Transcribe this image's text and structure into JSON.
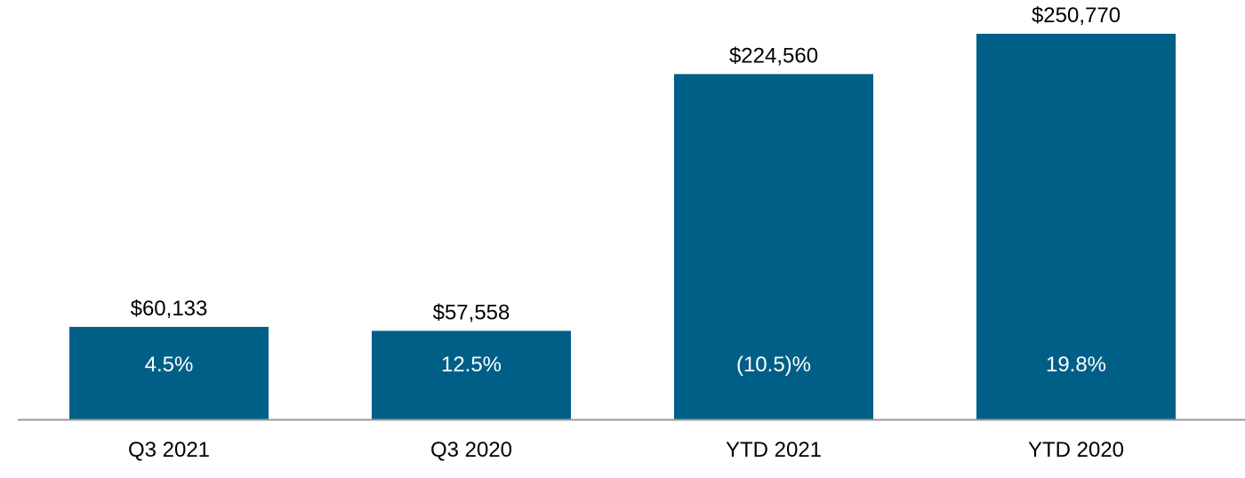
{
  "chart_data": {
    "type": "bar",
    "categories": [
      "Q3 2021",
      "Q3 2020",
      "YTD 2021",
      "YTD 2020"
    ],
    "values": [
      60133,
      57558,
      224560,
      250770
    ],
    "value_labels": [
      "$60,133",
      "$57,558",
      "$224,560",
      "$250,770"
    ],
    "bar_annotations": [
      "4.5%",
      "12.5%",
      "(10.5)%",
      "19.8%"
    ],
    "title": "",
    "xlabel": "",
    "ylabel": "",
    "ylim": [
      0,
      250770
    ],
    "grid": false,
    "legend": "none",
    "colors": {
      "bar": "#005f87",
      "axis": "#999999",
      "value_text": "#000000",
      "annotation_text": "#ffffff"
    }
  }
}
